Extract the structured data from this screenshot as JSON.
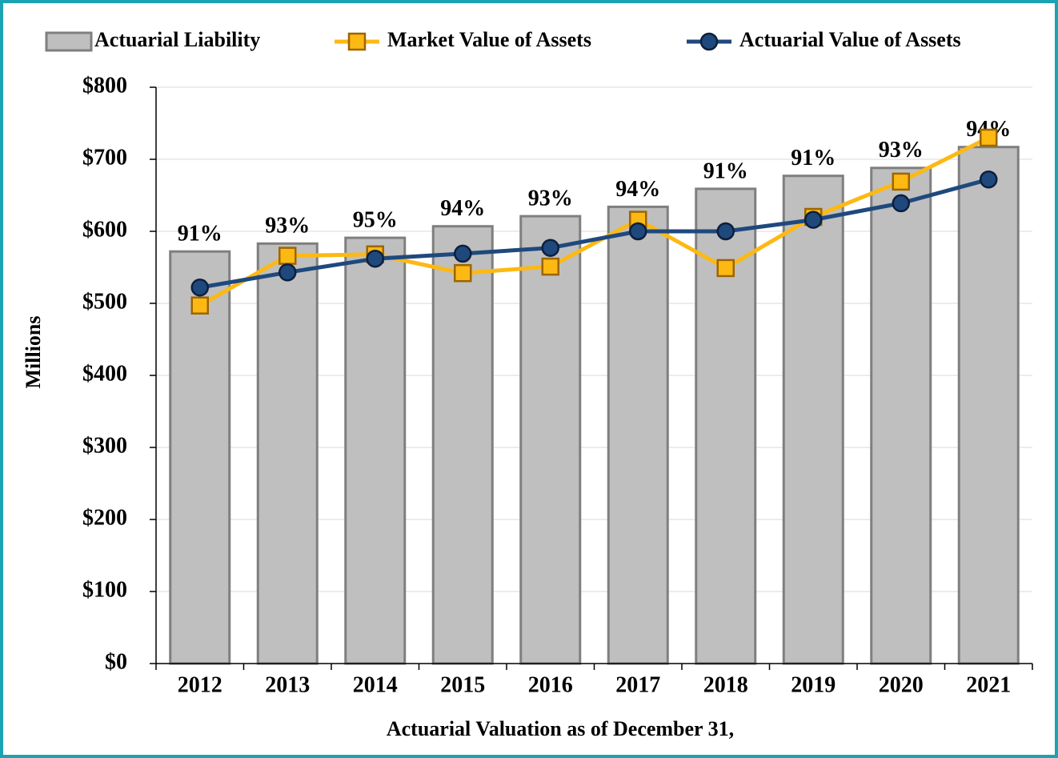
{
  "chart_data": {
    "type": "bar",
    "y_label": "Millions",
    "x_label": "Actuarial Valuation as of December 31,",
    "categories": [
      "2012",
      "2013",
      "2014",
      "2015",
      "2016",
      "2017",
      "2018",
      "2019",
      "2020",
      "2021"
    ],
    "series": [
      {
        "name": "Actuarial Liability",
        "type": "bar",
        "color": "#bfbfbf",
        "values": [
          572,
          583,
          591,
          607,
          621,
          634,
          659,
          677,
          688,
          717
        ],
        "data_labels": [
          "91%",
          "93%",
          "95%",
          "94%",
          "93%",
          "94%",
          "91%",
          "91%",
          "93%",
          "94%"
        ]
      },
      {
        "name": "Market Value of Assets",
        "type": "line",
        "marker": "square",
        "color": "#fdb913",
        "values": [
          497,
          566,
          568,
          542,
          551,
          616,
          549,
          620,
          669,
          730
        ]
      },
      {
        "name": "Actuarial Value of Assets",
        "type": "line",
        "marker": "circle",
        "color": "#1f497d",
        "values": [
          522,
          543,
          562,
          569,
          577,
          600,
          600,
          616,
          639,
          672
        ]
      }
    ],
    "ylim": [
      0,
      800
    ],
    "yticks": [
      {
        "value": 0,
        "label": "$0"
      },
      {
        "value": 100,
        "label": "$100"
      },
      {
        "value": 200,
        "label": "$200"
      },
      {
        "value": 300,
        "label": "$300"
      },
      {
        "value": 400,
        "label": "$400"
      },
      {
        "value": 500,
        "label": "$500"
      },
      {
        "value": 600,
        "label": "$600"
      },
      {
        "value": 700,
        "label": "$700"
      },
      {
        "value": 800,
        "label": "$800"
      }
    ],
    "grid": true,
    "legend": "top"
  }
}
